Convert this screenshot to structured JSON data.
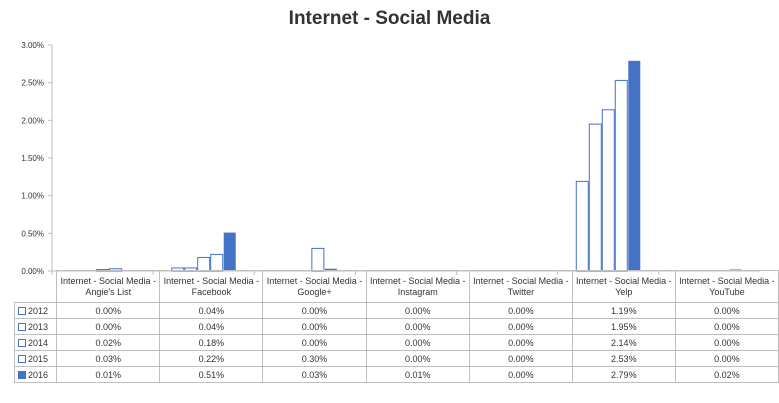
{
  "chart_data": {
    "type": "bar",
    "title": "Internet - Social Media",
    "xlabel": "",
    "ylabel": "",
    "ylim": [
      0,
      3
    ],
    "yticks": [
      "0.00%",
      "0.50%",
      "1.00%",
      "1.50%",
      "2.00%",
      "2.50%",
      "3.00%"
    ],
    "categories": [
      "Internet - Social Media - Angie's List",
      "Internet - Social Media - Facebook",
      "Internet - Social Media - Google+",
      "Internet - Social Media - Instagram",
      "Internet - Social Media - Twitter",
      "Internet - Social Media - Yelp",
      "Internet - Social Media - YouTube"
    ],
    "series": [
      {
        "name": "2012",
        "values": [
          0.0,
          0.04,
          0.0,
          0.0,
          0.0,
          1.19,
          0.0
        ],
        "labels": [
          "0.00%",
          "0.04%",
          "0.00%",
          "0.00%",
          "0.00%",
          "1.19%",
          "0.00%"
        ]
      },
      {
        "name": "2013",
        "values": [
          0.0,
          0.04,
          0.0,
          0.0,
          0.0,
          1.95,
          0.0
        ],
        "labels": [
          "0.00%",
          "0.04%",
          "0.00%",
          "0.00%",
          "0.00%",
          "1.95%",
          "0.00%"
        ]
      },
      {
        "name": "2014",
        "values": [
          0.02,
          0.18,
          0.0,
          0.0,
          0.0,
          2.14,
          0.0
        ],
        "labels": [
          "0.02%",
          "0.18%",
          "0.00%",
          "0.00%",
          "0.00%",
          "2.14%",
          "0.00%"
        ]
      },
      {
        "name": "2015",
        "values": [
          0.03,
          0.22,
          0.3,
          0.0,
          0.0,
          2.53,
          0.0
        ],
        "labels": [
          "0.03%",
          "0.22%",
          "0.30%",
          "0.00%",
          "0.00%",
          "2.53%",
          "0.00%"
        ]
      },
      {
        "name": "2016",
        "values": [
          0.01,
          0.51,
          0.03,
          0.01,
          0.0,
          2.79,
          0.02
        ],
        "labels": [
          "0.01%",
          "0.51%",
          "0.03%",
          "0.01%",
          "0.00%",
          "2.79%",
          "0.02%"
        ]
      }
    ],
    "legend": "data-table",
    "grid": false,
    "colors": {
      "outline": "#4472c4",
      "filled": "#4472c4",
      "axis": "#bfbfbf"
    }
  }
}
